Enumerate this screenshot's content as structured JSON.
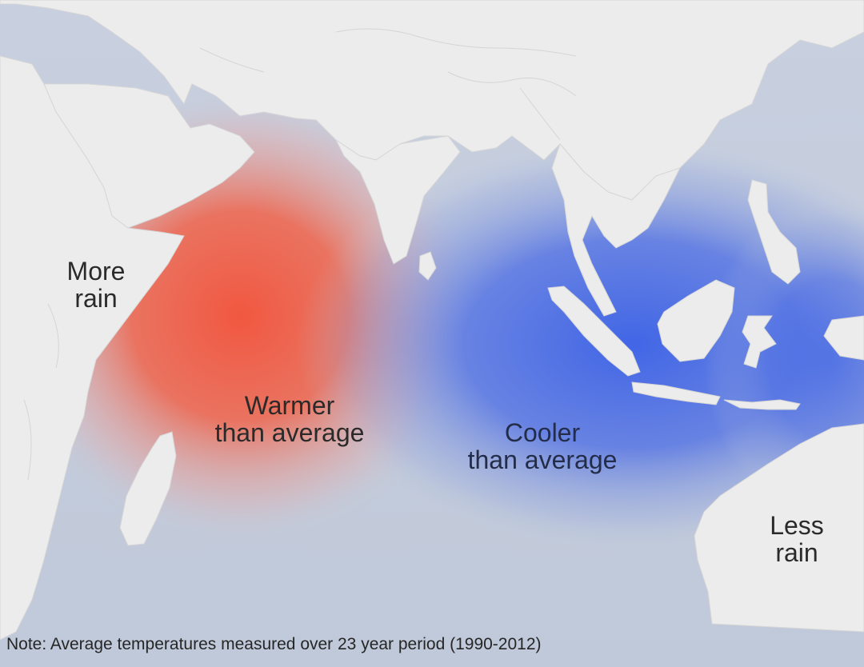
{
  "labels": {
    "more_rain": [
      "More",
      "rain"
    ],
    "warmer": [
      "Warmer",
      "than average"
    ],
    "cooler": [
      "Cooler",
      "than average"
    ],
    "less_rain": [
      "Less",
      "rain"
    ]
  },
  "note": "Note: Average temperatures measured over 23 year period (1990-2012)",
  "colors": {
    "ocean": "#c3ccdc",
    "land": "#ececec",
    "warm_anomaly": "#f2553d",
    "cool_anomaly": "#3e63e6"
  },
  "icons": [
    "map-of-indian-ocean"
  ]
}
